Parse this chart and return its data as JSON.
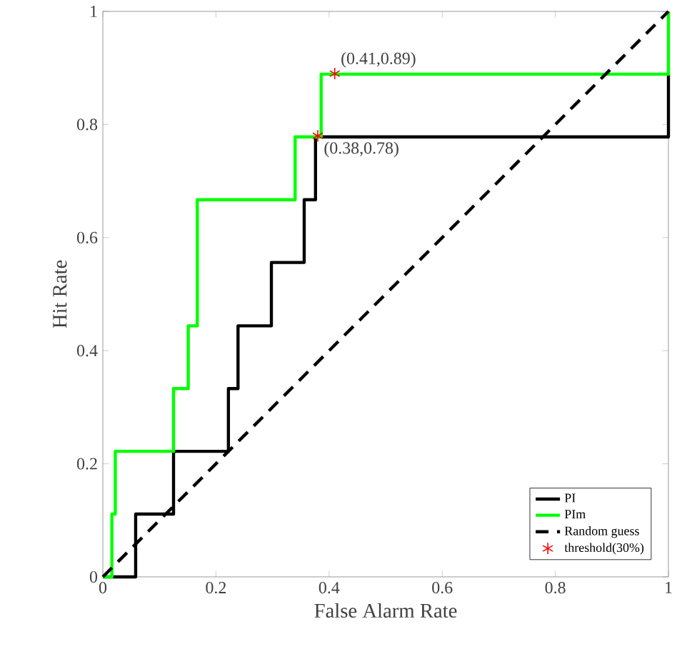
{
  "chart_data": {
    "type": "line",
    "xlabel": "False Alarm Rate",
    "ylabel": "Hit Rate",
    "xlim": [
      0,
      1
    ],
    "ylim": [
      0,
      1
    ],
    "xticks": [
      0,
      0.2,
      0.4,
      0.6,
      0.8,
      1
    ],
    "yticks": [
      0,
      0.2,
      0.4,
      0.6,
      0.8,
      1
    ],
    "legend": "bottom right",
    "series": [
      {
        "name": "PI",
        "color": "#000000",
        "line_style": "solid",
        "marker": "none",
        "x": [
          0,
          0.058,
          0.058,
          0.125,
          0.125,
          0.222,
          0.222,
          0.239,
          0.239,
          0.298,
          0.298,
          0.356,
          0.356,
          0.376,
          0.376,
          1,
          1
        ],
        "values": [
          0,
          0,
          0.111,
          0.111,
          0.222,
          0.222,
          0.333,
          0.333,
          0.444,
          0.444,
          0.556,
          0.556,
          0.667,
          0.667,
          0.778,
          0.778,
          0.889
        ]
      },
      {
        "name": "PIm",
        "color": "#00ff00",
        "line_style": "solid",
        "marker": "none",
        "x": [
          0,
          0.016,
          0.016,
          0.022,
          0.022,
          0.125,
          0.125,
          0.151,
          0.151,
          0.167,
          0.167,
          0.34,
          0.34,
          0.386,
          0.386,
          1,
          1
        ],
        "values": [
          0,
          0,
          0.111,
          0.111,
          0.222,
          0.222,
          0.333,
          0.333,
          0.444,
          0.444,
          0.667,
          0.667,
          0.778,
          0.778,
          0.889,
          0.889,
          1
        ]
      },
      {
        "name": "Random guess",
        "color": "#000000",
        "line_style": "dashed",
        "marker": "none",
        "x": [
          0,
          1
        ],
        "values": [
          0,
          1
        ]
      },
      {
        "name": "threshold(30%)",
        "color": "#ff0000",
        "type": "scatter",
        "marker": "cross",
        "x": [
          0.41,
          0.38
        ],
        "values": [
          0.89,
          0.78
        ]
      }
    ],
    "annotations": [
      {
        "text": "(0.41,0.89)",
        "x": 0.41,
        "y": 0.89
      },
      {
        "text": "(0.38,0.78)",
        "x": 0.38,
        "y": 0.78
      }
    ]
  }
}
